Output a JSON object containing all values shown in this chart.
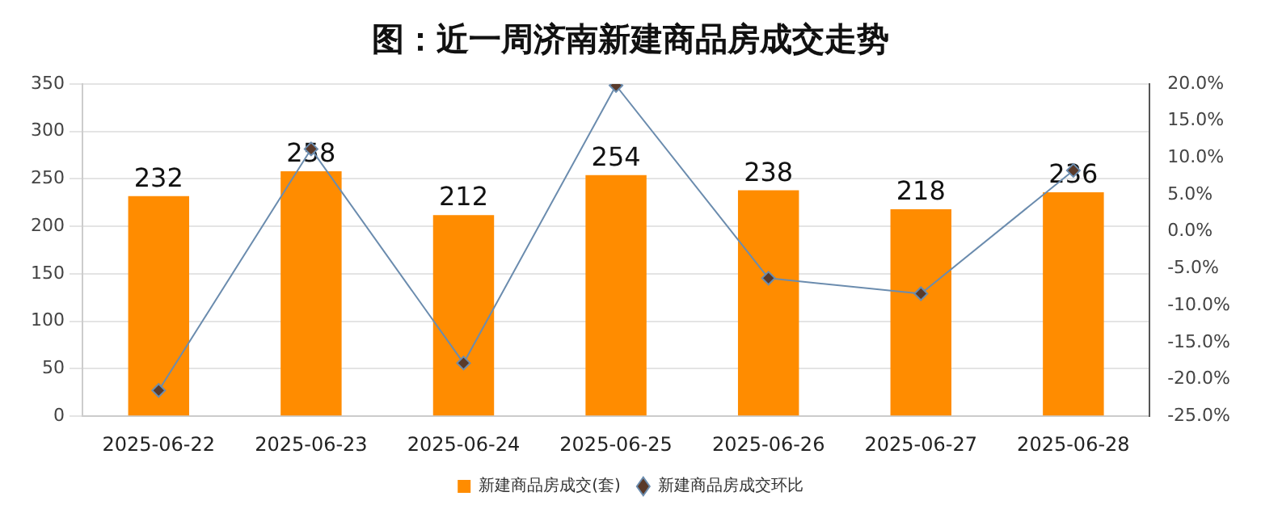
{
  "chart_data": {
    "type": "bar",
    "title": "图：近一周济南新建商品房成交走势",
    "categories": [
      "2025-06-22",
      "2025-06-23",
      "2025-06-24",
      "2025-06-25",
      "2025-06-26",
      "2025-06-27",
      "2025-06-28"
    ],
    "series": [
      {
        "name": "新建商品房成交(套)",
        "color": "#ff8c00",
        "values": [
          232,
          258,
          212,
          254,
          238,
          218,
          236
        ],
        "value_labels": [
          "232",
          "258",
          "212",
          "254",
          "238",
          "218",
          "236"
        ]
      },
      {
        "name": "新建商品房成交环比",
        "type": "line",
        "axis": "y2",
        "color": "#6b8cae",
        "values": [
          -21.5,
          11.2,
          -17.8,
          19.8,
          -6.3,
          -8.4,
          8.3
        ]
      }
    ],
    "ylim": [
      0,
      350
    ],
    "yticks": [
      0,
      50,
      100,
      150,
      200,
      250,
      300,
      350
    ],
    "y2lim": [
      -25,
      20
    ],
    "y2ticks": [
      {
        "value": -25,
        "label": "-25.0%"
      },
      {
        "value": -20,
        "label": "-20.0%"
      },
      {
        "value": -15,
        "label": "-15.0%"
      },
      {
        "value": -10,
        "label": "-10.0%"
      },
      {
        "value": -5,
        "label": "-5.0%"
      },
      {
        "value": 0,
        "label": "0.0%"
      },
      {
        "value": 5,
        "label": "5.0%"
      },
      {
        "value": 10,
        "label": "10.0%"
      },
      {
        "value": 15,
        "label": "15.0%"
      },
      {
        "value": 20,
        "label": "20.0%"
      }
    ],
    "grid": "y",
    "legend": "bottom",
    "marker": "diamond",
    "line_style": "solid"
  }
}
